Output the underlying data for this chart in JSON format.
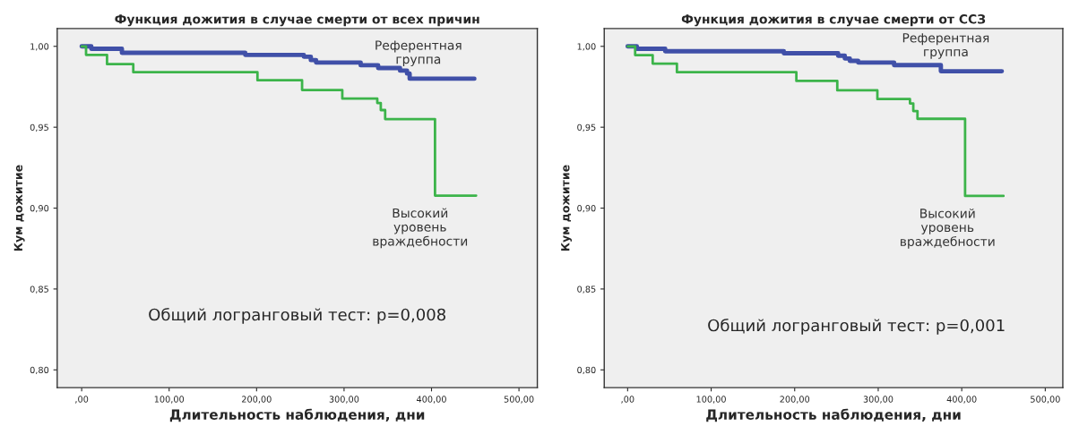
{
  "chart_data": [
    {
      "type": "step",
      "title": "Функция дожития в случае смерти от всех причин",
      "xlabel": "Длительность наблюдения, дни",
      "ylabel": "Кум дожитие",
      "xlim": [
        -28,
        521
      ],
      "ylim": [
        0.789,
        1.011
      ],
      "xticks": [
        {
          "value": 0,
          "label": ",00"
        },
        {
          "value": 100,
          "label": "100,00"
        },
        {
          "value": 200,
          "label": "200,00"
        },
        {
          "value": 300,
          "label": "300,00"
        },
        {
          "value": 400,
          "label": "400,00"
        },
        {
          "value": 500,
          "label": "500,00"
        }
      ],
      "yticks": [
        {
          "value": 0.8,
          "label": "0,80"
        },
        {
          "value": 0.85,
          "label": "0,85"
        },
        {
          "value": 0.9,
          "label": "0,90"
        },
        {
          "value": 0.95,
          "label": "0,95"
        },
        {
          "value": 1.0,
          "label": "1,00"
        }
      ],
      "grid": false,
      "annotations": [
        "Общий логранговый тест: p=0,008"
      ],
      "series": [
        {
          "name": "Референтная\nгруппа",
          "color": "#4050a8",
          "x": [
            0,
            11,
            46,
            187,
            254,
            262,
            268,
            319,
            339,
            364,
            372,
            375,
            449
          ],
          "values": [
            1.0,
            0.9985,
            0.996,
            0.9947,
            0.9936,
            0.9915,
            0.99,
            0.9883,
            0.9866,
            0.985,
            0.9832,
            0.98,
            0.98
          ]
        },
        {
          "name": "Высокий\nуровень\nвраждебности",
          "color": "#3cb44a",
          "x": [
            0,
            5,
            29,
            59,
            201,
            252,
            298,
            338,
            342,
            347,
            404,
            451
          ],
          "values": [
            1.0,
            0.9947,
            0.989,
            0.984,
            0.979,
            0.973,
            0.9677,
            0.965,
            0.9606,
            0.955,
            0.9077,
            0.9077
          ]
        }
      ]
    },
    {
      "type": "step",
      "title": "Функция дожития в случае смерти от ССЗ",
      "xlabel": "Длительность наблюдения, дни",
      "ylabel": "Кум дожитие",
      "xlim": [
        -28,
        521
      ],
      "ylim": [
        0.789,
        1.011
      ],
      "xticks": [
        {
          "value": 0,
          "label": ",00"
        },
        {
          "value": 100,
          "label": "100,00"
        },
        {
          "value": 200,
          "label": "200,00"
        },
        {
          "value": 300,
          "label": "300,00"
        },
        {
          "value": 400,
          "label": "400,00"
        },
        {
          "value": 500,
          "label": "500,00"
        }
      ],
      "yticks": [
        {
          "value": 0.8,
          "label": "0,80"
        },
        {
          "value": 0.85,
          "label": "0,85"
        },
        {
          "value": 0.9,
          "label": "0,90"
        },
        {
          "value": 0.95,
          "label": "0,95"
        },
        {
          "value": 1.0,
          "label": "1,00"
        }
      ],
      "grid": false,
      "annotations": [
        "Общий логранговый тест: p=0,001"
      ],
      "series": [
        {
          "name": "Референтная\nгруппа",
          "color": "#4050a8",
          "x": [
            0,
            11,
            45,
            187,
            252,
            260,
            266,
            276,
            319,
            375,
            448
          ],
          "values": [
            1.0,
            0.9985,
            0.997,
            0.9957,
            0.9942,
            0.9925,
            0.991,
            0.99,
            0.9884,
            0.9846,
            0.9846
          ]
        },
        {
          "name": "Высокий\nуровень\nвраждебности",
          "color": "#3cb44a",
          "x": [
            0,
            9,
            30,
            59,
            202,
            251,
            299,
            338,
            342,
            347,
            404,
            450
          ],
          "values": [
            1.0,
            0.9946,
            0.9893,
            0.984,
            0.9786,
            0.9728,
            0.9674,
            0.9647,
            0.96,
            0.9552,
            0.9075,
            0.9075
          ]
        }
      ]
    }
  ]
}
